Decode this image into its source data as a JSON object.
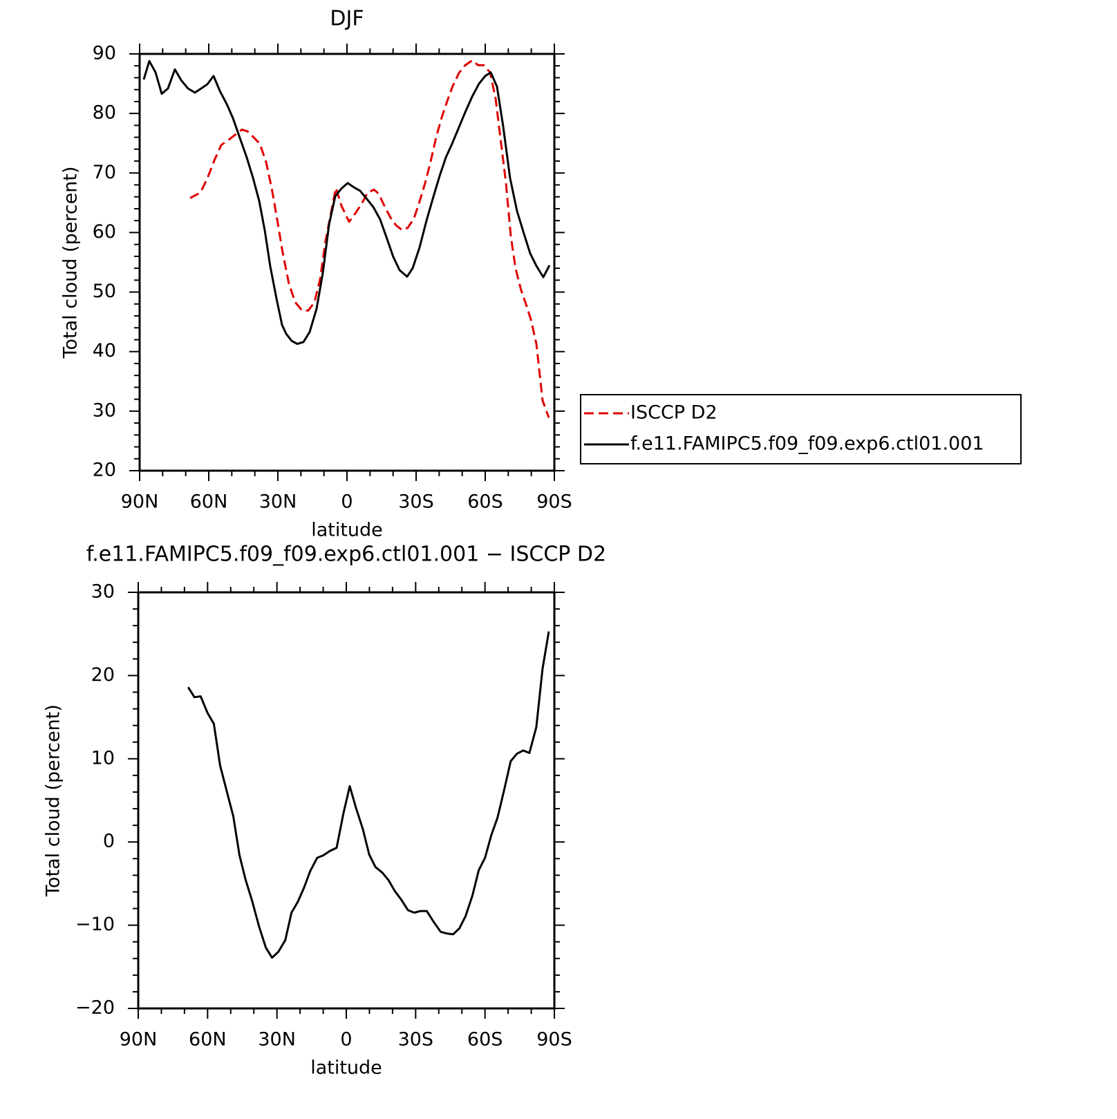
{
  "chart_data": [
    {
      "type": "line",
      "title": "DJF",
      "xlabel": "latitude",
      "ylabel": "Total cloud (percent)",
      "xlim": [
        90,
        -90
      ],
      "xticks": [
        {
          "value": 90,
          "label": "90N"
        },
        {
          "value": 60,
          "label": "60N"
        },
        {
          "value": 30,
          "label": "30N"
        },
        0,
        {
          "value": -30,
          "label": "30S"
        },
        {
          "value": -60,
          "label": "60S"
        },
        {
          "value": -90,
          "label": "90S"
        }
      ],
      "xminorticks": [
        80,
        70,
        50,
        40,
        20,
        10,
        -10,
        -20,
        -40,
        -50,
        -70,
        -80
      ],
      "ylim": [
        20,
        90
      ],
      "yticks": [
        20,
        30,
        40,
        50,
        60,
        70,
        80,
        90
      ],
      "yminorticks": [
        22,
        24,
        26,
        28,
        32,
        34,
        36,
        38,
        42,
        44,
        46,
        48,
        52,
        54,
        56,
        58,
        62,
        64,
        66,
        68,
        72,
        74,
        76,
        78,
        82,
        84,
        86,
        88
      ],
      "legend": "right",
      "series": [
        {
          "name": "ISCCP D2",
          "color": "#e00000",
          "linestyle": "dashed",
          "x": [
            68.1,
            63.6,
            60.6,
            57.6,
            54.6,
            51.6,
            48.6,
            45.6,
            43.2,
            40.8,
            37.8,
            35.1,
            32.7,
            30.3,
            27.9,
            25.2,
            22.5,
            19.5,
            16.8,
            14.1,
            11.7,
            9.3,
            6.9,
            4.8,
            2.4,
            -0.9,
            -3.6,
            -6.3,
            -9.0,
            -11.7,
            -13.8,
            -16.2,
            -18.9,
            -21.3,
            -24.0,
            -26.4,
            -29.1,
            -31.5,
            -33.9,
            -36.3,
            -38.7,
            -41.1,
            -43.5,
            -45.9,
            -48.6,
            -51.3,
            -54.3,
            -57.0,
            -59.4,
            -62.1,
            -64.5,
            -66.6,
            -69.0,
            -71.1,
            -73.2,
            -75.6,
            -78.0,
            -79.8,
            -82.2,
            -84.9,
            -87.6
          ],
          "values": [
            65.8,
            66.7,
            69.1,
            72.1,
            74.7,
            75.5,
            76.4,
            77.3,
            77.0,
            76.1,
            74.9,
            71.8,
            67.5,
            62.2,
            56.6,
            51.4,
            48.3,
            46.9,
            46.9,
            48.3,
            52.1,
            58.6,
            63.4,
            67.5,
            64.5,
            61.8,
            63.2,
            64.8,
            66.7,
            67.2,
            66.5,
            64.5,
            62.5,
            61.2,
            60.4,
            60.8,
            62.4,
            65.2,
            68.3,
            71.9,
            76.0,
            79.3,
            82.1,
            84.6,
            86.8,
            88.1,
            88.9,
            88.1,
            88.1,
            86.9,
            82.5,
            75.9,
            68.3,
            59.4,
            53.9,
            50.3,
            47.6,
            45.4,
            41.3,
            31.8,
            28.9
          ]
        },
        {
          "name": "f.e11.FAMIPC5.f09_f09.exp6.ctl01.001",
          "color": "#000000",
          "linestyle": "solid",
          "x": [
            88.2,
            85.8,
            83.1,
            80.4,
            77.7,
            74.7,
            72.0,
            69.0,
            66.0,
            63.3,
            60.6,
            57.9,
            55.2,
            52.2,
            49.5,
            46.5,
            43.5,
            40.8,
            38.1,
            35.7,
            33.3,
            30.6,
            28.2,
            26.4,
            24.0,
            21.6,
            18.9,
            16.2,
            13.2,
            10.5,
            7.8,
            5.1,
            2.4,
            -0.3,
            -3.0,
            -5.7,
            -8.7,
            -11.4,
            -14.4,
            -17.4,
            -20.1,
            -22.8,
            -26.1,
            -28.5,
            -31.5,
            -34.5,
            -37.5,
            -40.2,
            -42.9,
            -45.6,
            -48.3,
            -51.3,
            -54.3,
            -57.3,
            -60.0,
            -62.4,
            -65.1,
            -67.8,
            -70.8,
            -73.8,
            -76.8,
            -79.5,
            -82.2,
            -85.2,
            -87.9
          ],
          "values": [
            85.7,
            88.8,
            86.9,
            83.3,
            84.2,
            87.4,
            85.6,
            84.2,
            83.5,
            84.2,
            84.9,
            86.3,
            83.8,
            81.6,
            79.2,
            75.9,
            72.6,
            69.2,
            65.3,
            60.4,
            54.3,
            48.9,
            44.5,
            43.0,
            41.8,
            41.3,
            41.6,
            43.3,
            47.2,
            53.2,
            61.3,
            66.1,
            67.4,
            68.3,
            67.6,
            67.0,
            65.6,
            64.3,
            62.2,
            58.9,
            55.9,
            53.7,
            52.6,
            54.0,
            57.5,
            62.0,
            66.0,
            69.5,
            72.6,
            74.9,
            77.4,
            80.2,
            82.8,
            85.0,
            86.3,
            86.9,
            84.5,
            77.8,
            69.1,
            63.6,
            59.8,
            56.5,
            54.4,
            52.5,
            54.5
          ]
        }
      ]
    },
    {
      "type": "line",
      "title": "f.e11.FAMIPC5.f09_f09.exp6.ctl01.001 − ISCCP D2",
      "xlabel": "latitude",
      "ylabel": "Total cloud (percent)",
      "xlim": [
        90,
        -90
      ],
      "xticks": [
        {
          "value": 90,
          "label": "90N"
        },
        {
          "value": 60,
          "label": "60N"
        },
        {
          "value": 30,
          "label": "30N"
        },
        0,
        {
          "value": -30,
          "label": "30S"
        },
        {
          "value": -60,
          "label": "60S"
        },
        {
          "value": -90,
          "label": "90S"
        }
      ],
      "xminorticks": [
        80,
        70,
        50,
        40,
        20,
        10,
        -10,
        -20,
        -40,
        -50,
        -70,
        -80
      ],
      "ylim": [
        -20,
        30
      ],
      "yticks": [
        {
          "value": -20,
          "label": "−20"
        },
        {
          "value": -10,
          "label": "−10"
        },
        0,
        10,
        20,
        30
      ],
      "yminorticks": [
        -18,
        -16,
        -14,
        -12,
        -8,
        -6,
        -4,
        -2,
        2,
        4,
        6,
        8,
        12,
        14,
        16,
        18,
        22,
        24,
        26,
        28
      ],
      "color": "#000000",
      "x": [
        68.4,
        65.7,
        63.0,
        60.0,
        57.3,
        54.6,
        51.6,
        48.9,
        46.2,
        43.5,
        40.8,
        37.8,
        34.8,
        32.1,
        29.4,
        26.4,
        23.7,
        21.0,
        18.3,
        15.6,
        12.6,
        9.9,
        7.2,
        4.2,
        1.2,
        -1.5,
        -4.2,
        -7.2,
        -9.9,
        -12.6,
        -15.6,
        -18.3,
        -21.0,
        -23.7,
        -26.7,
        -29.4,
        -32.1,
        -34.8,
        -37.8,
        -40.8,
        -43.5,
        -46.2,
        -48.9,
        -51.6,
        -54.6,
        -57.3,
        -60.0,
        -62.7,
        -65.4,
        -68.4,
        -71.1,
        -73.8,
        -76.5,
        -79.2,
        -82.2,
        -84.9,
        -87.6
      ],
      "values": [
        18.6,
        17.4,
        17.5,
        15.5,
        14.2,
        9.2,
        6.0,
        3.1,
        -1.6,
        -4.6,
        -7.0,
        -10.1,
        -12.7,
        -13.9,
        -13.2,
        -11.8,
        -8.5,
        -7.2,
        -5.5,
        -3.5,
        -1.9,
        -1.6,
        -1.1,
        -0.7,
        3.5,
        6.7,
        4.1,
        1.5,
        -1.5,
        -3.0,
        -3.7,
        -4.6,
        -5.9,
        -6.9,
        -8.2,
        -8.5,
        -8.3,
        -8.3,
        -9.6,
        -10.8,
        -11.0,
        -11.1,
        -10.4,
        -8.9,
        -6.4,
        -3.4,
        -1.9,
        0.8,
        2.9,
        6.4,
        9.7,
        10.6,
        11.0,
        10.7,
        13.8,
        20.8,
        25.3
      ]
    }
  ]
}
